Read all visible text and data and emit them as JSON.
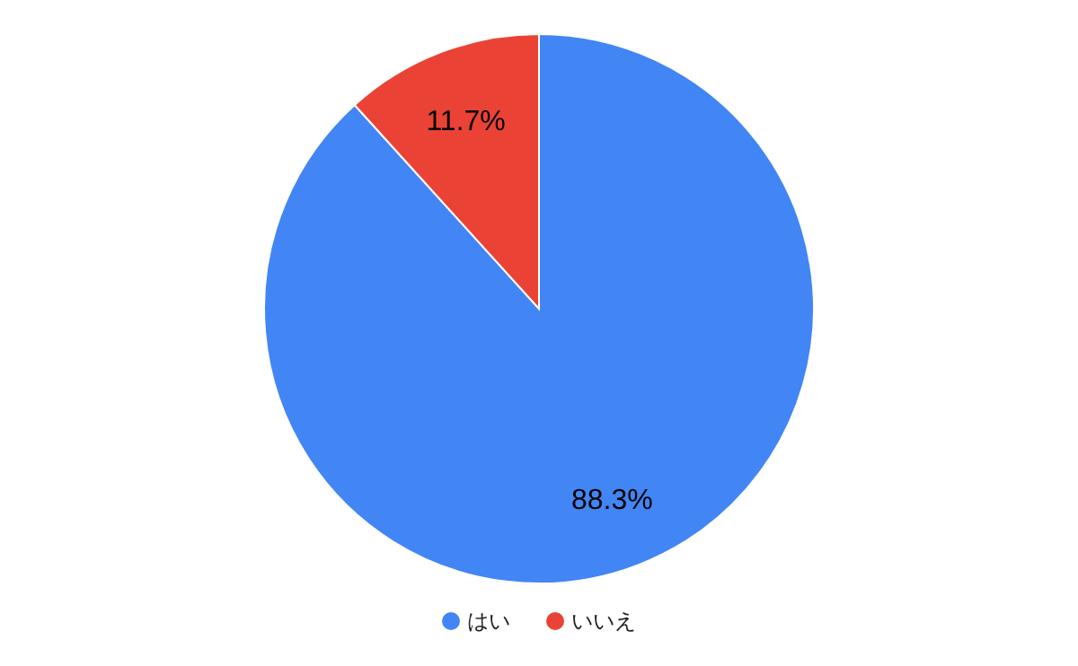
{
  "chart_data": {
    "type": "pie",
    "categories": [
      "はい",
      "いいえ"
    ],
    "values": [
      88.3,
      11.7
    ],
    "colors": [
      "#4285f4",
      "#ea4335"
    ],
    "value_labels": [
      "88.3%",
      "11.7%"
    ],
    "legend": "bottom"
  }
}
